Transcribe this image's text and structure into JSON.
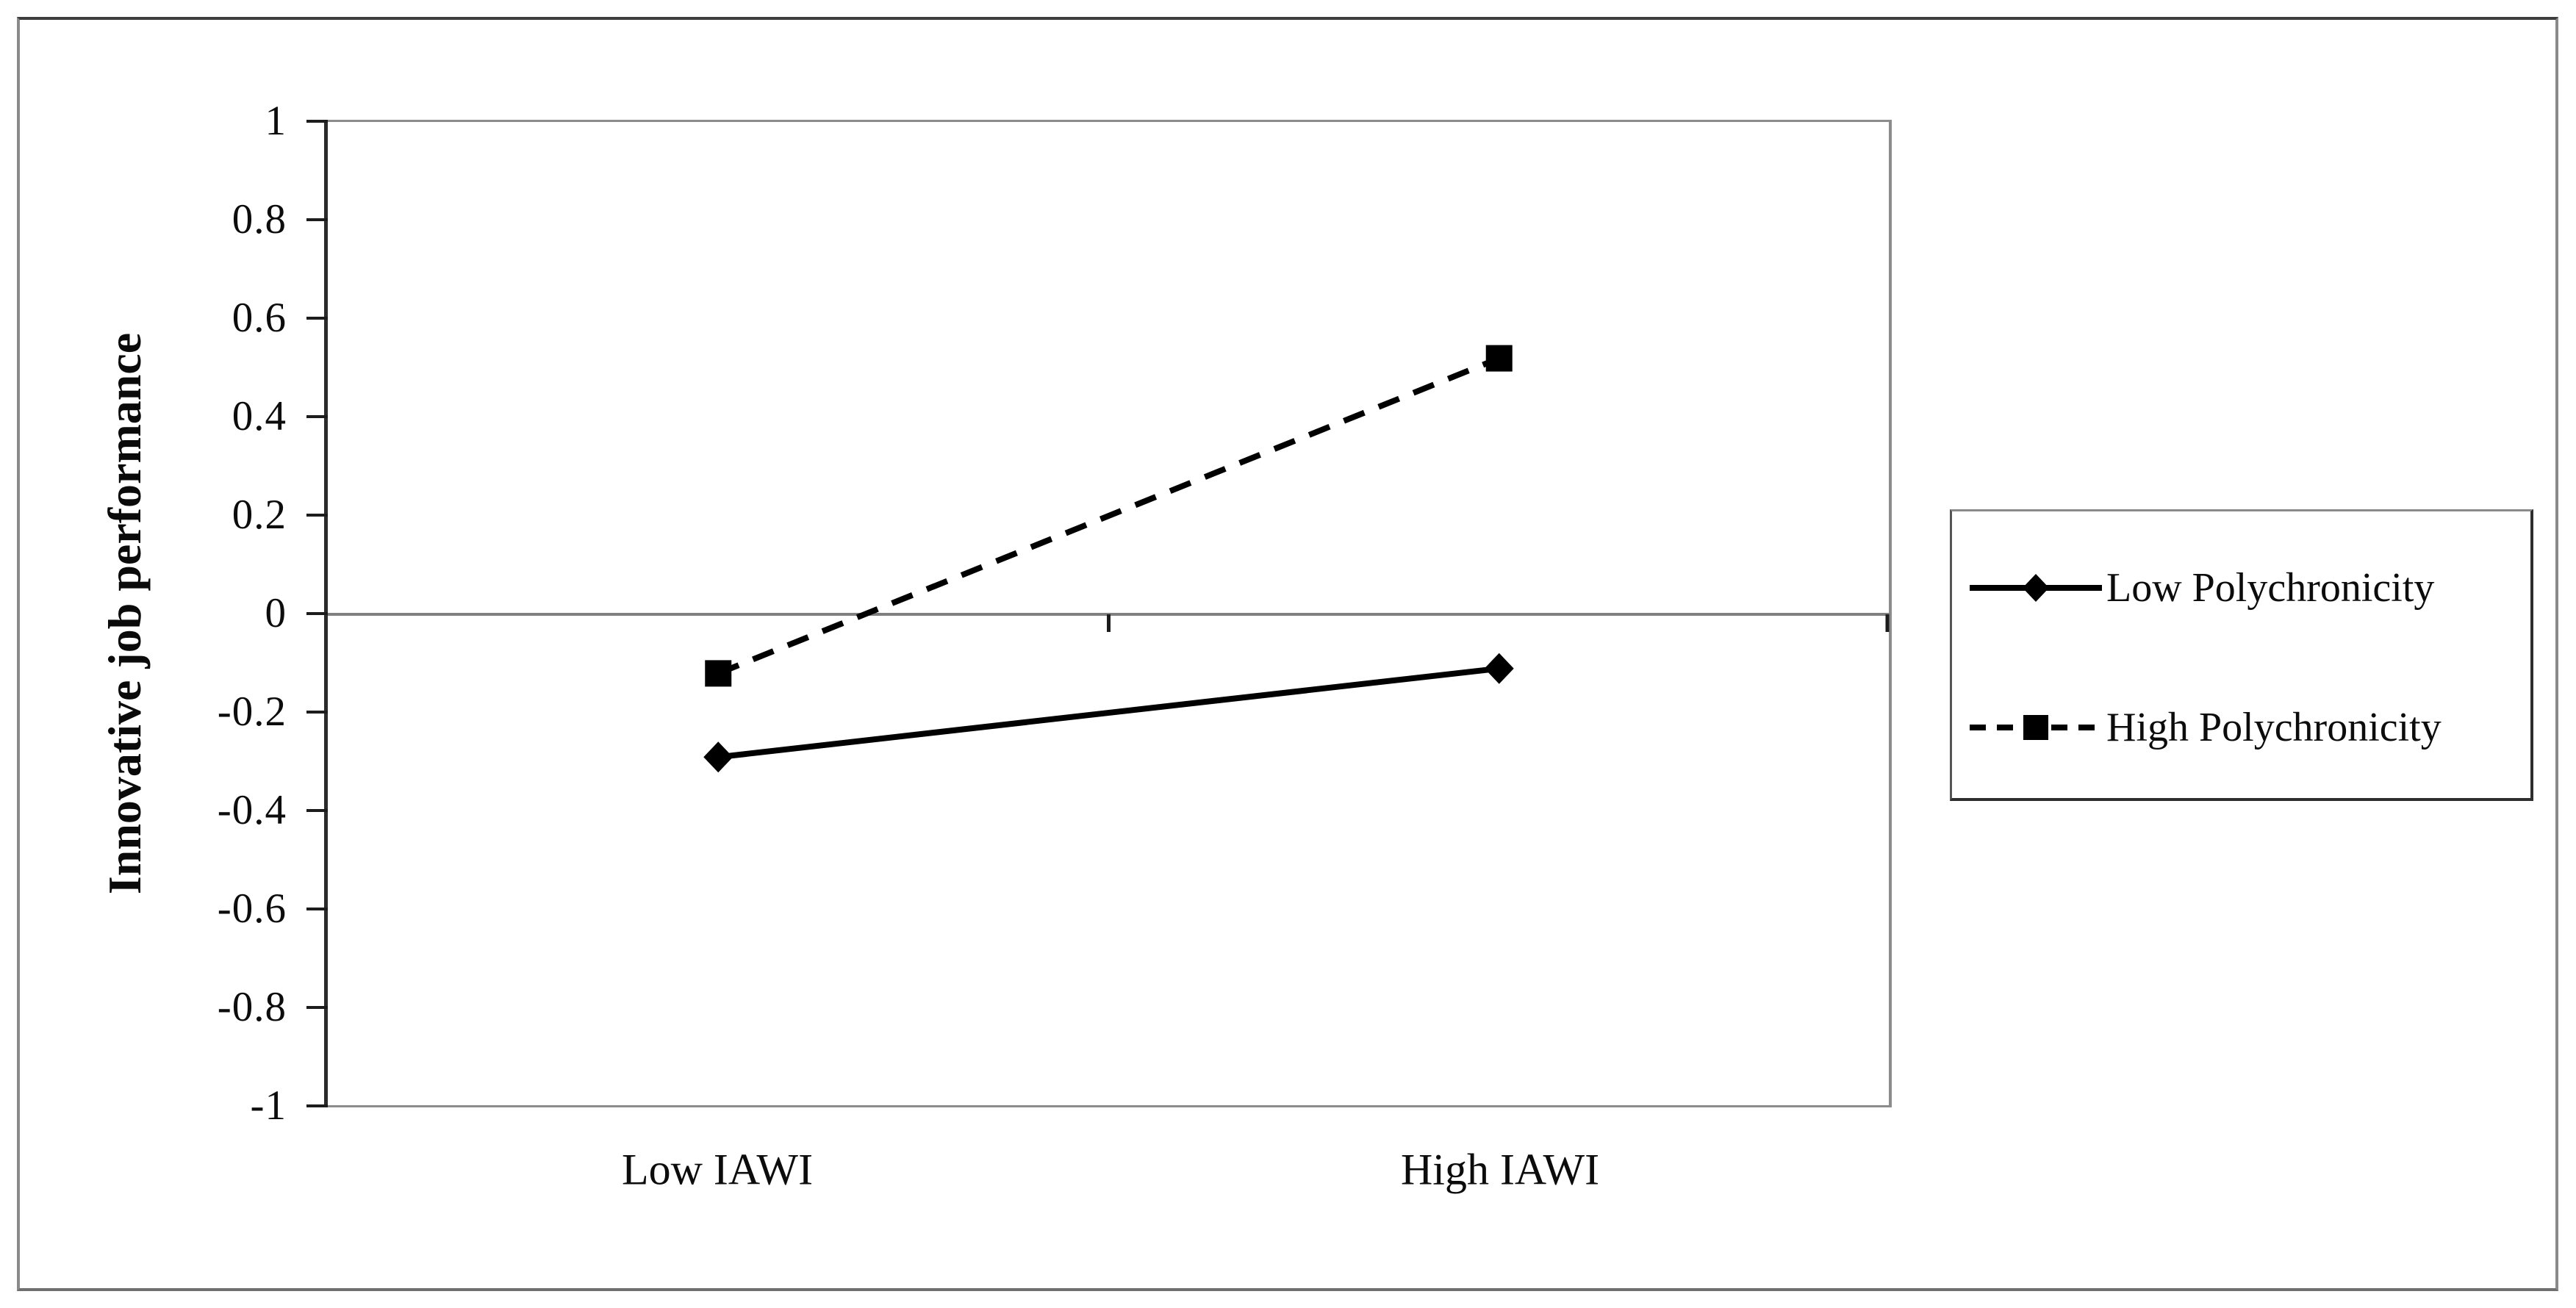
{
  "chart_data": {
    "type": "line",
    "categories": [
      "Low IAWI",
      "High IAWI"
    ],
    "series": [
      {
        "name": "Low Polychronicity",
        "values": [
          -0.29,
          -0.11
        ],
        "marker": "diamond",
        "line_style": "solid"
      },
      {
        "name": "High Polychronicity",
        "values": [
          -0.12,
          0.52
        ],
        "marker": "square",
        "line_style": "dashed"
      }
    ],
    "title": "",
    "xlabel": "",
    "ylabel": "Innovative job performance",
    "ylim": [
      -1,
      1
    ],
    "yticks": [
      1,
      0.8,
      0.6,
      0.4,
      0.2,
      0,
      -0.2,
      -0.4,
      -0.6,
      -0.8,
      -1
    ],
    "grid": false,
    "zero_axis_line": true,
    "legend_position": "right",
    "colors": {
      "series": "#000000",
      "plot_border": "#8c8c8c",
      "zero_line": "#808080",
      "axis": "#2b2b2b",
      "text": "#0c0c0c"
    }
  }
}
